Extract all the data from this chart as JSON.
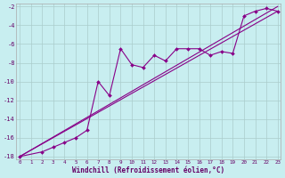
{
  "xlabel": "Windchill (Refroidissement éolien,°C)",
  "bg_color": "#c8eef0",
  "grid_color": "#aacccc",
  "line_color": "#880088",
  "xmin": 0,
  "xmax": 23,
  "ymin": -18,
  "ymax": -2,
  "ytick_values": [
    -18,
    -16,
    -14,
    -12,
    -10,
    -8,
    -6,
    -4,
    -2
  ],
  "xtick_labels": [
    "0",
    "1",
    "2",
    "3",
    "4",
    "5",
    "6",
    "7",
    "8",
    "9",
    "10",
    "11",
    "12",
    "13",
    "14",
    "15",
    "16",
    "17",
    "18",
    "19",
    "20",
    "21",
    "22",
    "23"
  ],
  "tick_color": "#660066",
  "line1_x": [
    0,
    23
  ],
  "line1_y": [
    -18,
    -2
  ],
  "line2_x": [
    0,
    23
  ],
  "line2_y": [
    -18.0,
    -2.5
  ],
  "data_x": [
    0,
    2,
    3,
    4,
    5,
    6,
    7,
    8,
    9,
    10,
    11,
    12,
    13,
    14,
    15,
    16,
    17,
    18,
    19,
    20,
    21,
    22,
    23
  ],
  "data_y": [
    -18,
    -17.5,
    -17,
    -16.5,
    -16,
    -15.2,
    -10.0,
    -11.5,
    -6.5,
    -8.2,
    -8.5,
    -7.2,
    -7.8,
    -6.5,
    -6.5,
    -6.5,
    -7.2,
    -6.8,
    -7.0,
    -3.0,
    -2.5,
    -2.2,
    -2.5
  ]
}
